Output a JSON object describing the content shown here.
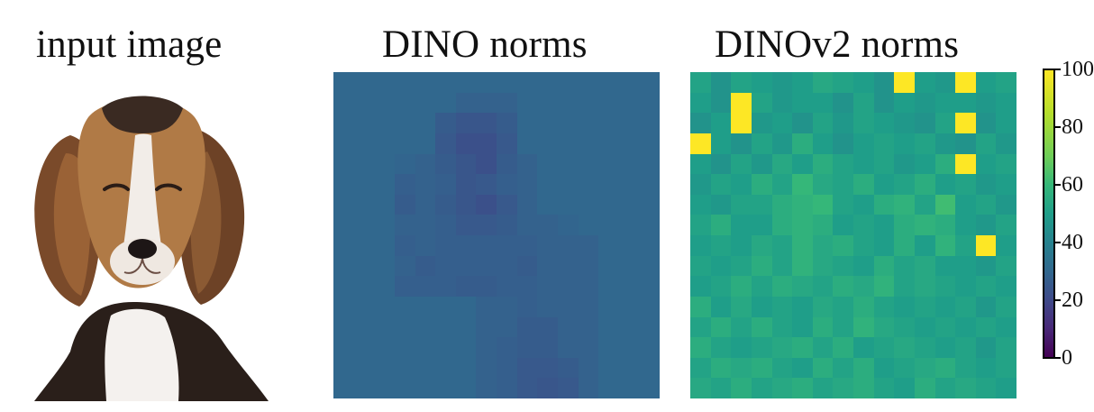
{
  "panels": [
    {
      "title": "input image"
    },
    {
      "title": "DINO norms"
    },
    {
      "title": "DINOv2 norms"
    }
  ],
  "colorbar": {
    "tick_labels": [
      "100",
      "80",
      "60",
      "40",
      "20",
      "0"
    ],
    "colormap": "viridis",
    "range": [
      0,
      100
    ]
  },
  "chart_data": [
    {
      "type": "heatmap",
      "title": "DINO norms",
      "rows": 16,
      "cols": 16,
      "values": [
        [
          30,
          30,
          30,
          30,
          30,
          30,
          30,
          30,
          30,
          30,
          30,
          30,
          30,
          30,
          30,
          30
        ],
        [
          30,
          30,
          30,
          30,
          30,
          30,
          28,
          28,
          28,
          30,
          30,
          30,
          30,
          30,
          30,
          30
        ],
        [
          30,
          30,
          30,
          30,
          30,
          26,
          24,
          24,
          26,
          30,
          30,
          30,
          30,
          30,
          30,
          30
        ],
        [
          30,
          30,
          30,
          30,
          30,
          25,
          22,
          22,
          25,
          30,
          30,
          30,
          30,
          30,
          30,
          30
        ],
        [
          30,
          30,
          30,
          29,
          28,
          26,
          24,
          22,
          26,
          28,
          30,
          30,
          30,
          30,
          30,
          30
        ],
        [
          30,
          30,
          30,
          27,
          28,
          27,
          24,
          25,
          27,
          28,
          30,
          30,
          30,
          30,
          30,
          30
        ],
        [
          30,
          30,
          30,
          26,
          28,
          26,
          24,
          22,
          25,
          28,
          30,
          30,
          30,
          30,
          30,
          30
        ],
        [
          30,
          30,
          30,
          28,
          28,
          27,
          25,
          25,
          26,
          28,
          28,
          29,
          30,
          30,
          30,
          30
        ],
        [
          30,
          30,
          30,
          27,
          28,
          27,
          27,
          27,
          27,
          27,
          28,
          28,
          28,
          30,
          30,
          30
        ],
        [
          30,
          30,
          30,
          28,
          26,
          27,
          27,
          27,
          27,
          26,
          28,
          28,
          28,
          30,
          30,
          30
        ],
        [
          30,
          30,
          30,
          27,
          27,
          27,
          26,
          26,
          27,
          27,
          28,
          28,
          28,
          30,
          30,
          30
        ],
        [
          30,
          30,
          30,
          30,
          30,
          30,
          30,
          28,
          28,
          27,
          28,
          28,
          28,
          30,
          30,
          30
        ],
        [
          30,
          30,
          30,
          30,
          30,
          30,
          30,
          28,
          28,
          26,
          26,
          28,
          28,
          30,
          30,
          30
        ],
        [
          30,
          30,
          30,
          30,
          30,
          30,
          30,
          28,
          27,
          26,
          26,
          28,
          28,
          30,
          30,
          30
        ],
        [
          30,
          30,
          30,
          30,
          30,
          30,
          30,
          28,
          27,
          25,
          25,
          26,
          28,
          30,
          30,
          30
        ],
        [
          30,
          30,
          30,
          30,
          30,
          30,
          30,
          28,
          27,
          25,
          24,
          25,
          28,
          30,
          30,
          30
        ]
      ]
    },
    {
      "type": "heatmap",
      "title": "DINOv2 norms",
      "rows": 16,
      "cols": 16,
      "values": [
        [
          52,
          46,
          52,
          50,
          48,
          50,
          54,
          52,
          50,
          46,
          100,
          50,
          48,
          100,
          50,
          52
        ],
        [
          50,
          46,
          100,
          52,
          48,
          50,
          50,
          46,
          52,
          46,
          50,
          48,
          50,
          50,
          48,
          50
        ],
        [
          46,
          50,
          100,
          48,
          50,
          46,
          52,
          48,
          52,
          50,
          48,
          46,
          52,
          100,
          46,
          50
        ],
        [
          100,
          50,
          46,
          52,
          48,
          56,
          50,
          46,
          50,
          52,
          50,
          52,
          48,
          46,
          52,
          48
        ],
        [
          50,
          46,
          52,
          48,
          54,
          50,
          56,
          52,
          50,
          52,
          48,
          50,
          56,
          100,
          50,
          52
        ],
        [
          48,
          52,
          50,
          56,
          52,
          60,
          54,
          52,
          56,
          50,
          52,
          56,
          50,
          52,
          48,
          50
        ],
        [
          50,
          48,
          52,
          52,
          56,
          58,
          60,
          52,
          50,
          56,
          58,
          52,
          62,
          50,
          52,
          48
        ],
        [
          52,
          56,
          50,
          50,
          56,
          58,
          56,
          50,
          52,
          50,
          56,
          58,
          56,
          50,
          48,
          52
        ],
        [
          50,
          52,
          50,
          54,
          52,
          58,
          54,
          56,
          52,
          50,
          56,
          50,
          58,
          52,
          100,
          50
        ],
        [
          52,
          50,
          52,
          56,
          52,
          58,
          54,
          52,
          50,
          56,
          52,
          54,
          50,
          50,
          48,
          52
        ],
        [
          50,
          52,
          56,
          52,
          56,
          54,
          52,
          56,
          54,
          58,
          52,
          54,
          52,
          50,
          52,
          50
        ],
        [
          56,
          50,
          54,
          50,
          52,
          50,
          54,
          52,
          56,
          52,
          50,
          52,
          50,
          52,
          48,
          52
        ],
        [
          52,
          56,
          52,
          56,
          52,
          50,
          56,
          52,
          58,
          54,
          52,
          50,
          52,
          50,
          52,
          50
        ],
        [
          56,
          52,
          50,
          52,
          54,
          56,
          52,
          56,
          50,
          52,
          54,
          52,
          50,
          52,
          48,
          52
        ],
        [
          52,
          56,
          54,
          56,
          52,
          50,
          56,
          52,
          56,
          50,
          52,
          54,
          56,
          52,
          50,
          52
        ],
        [
          54,
          52,
          56,
          52,
          54,
          56,
          52,
          54,
          56,
          52,
          50,
          56,
          52,
          54,
          52,
          50
        ]
      ]
    }
  ]
}
